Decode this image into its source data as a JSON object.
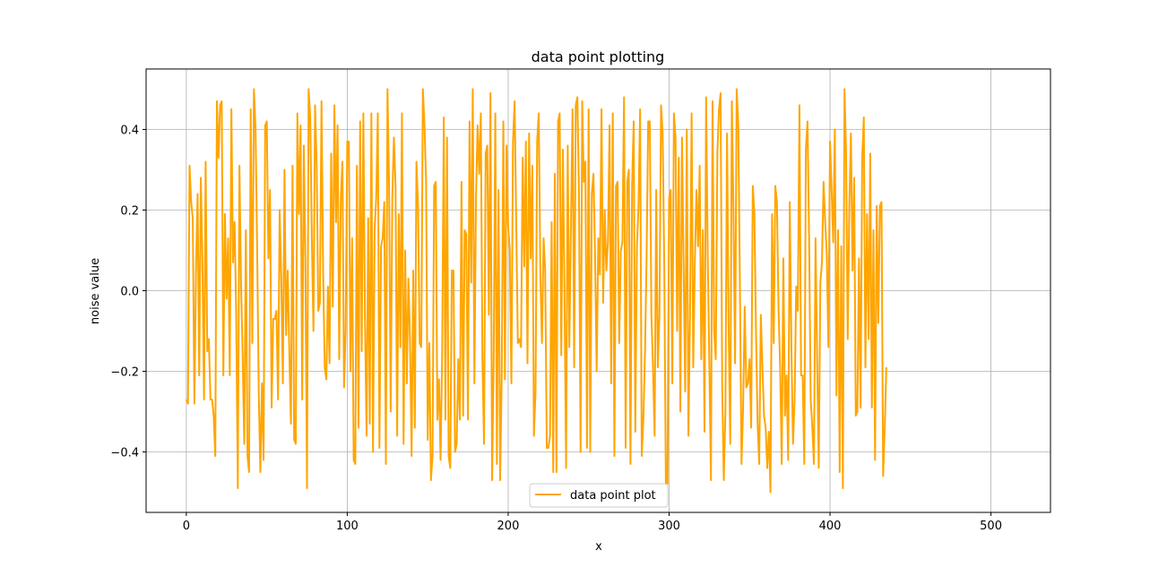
{
  "chart_data": {
    "type": "line",
    "title": "data point plotting",
    "xlabel": "x",
    "ylabel": "noise value",
    "xlim": [
      -25,
      537
    ],
    "ylim": [
      -0.55,
      0.55
    ],
    "xticks": [
      0,
      100,
      200,
      300,
      400,
      500
    ],
    "yticks": [
      -0.4,
      -0.2,
      0.0,
      0.2,
      0.4
    ],
    "xtick_labels": [
      "0",
      "100",
      "200",
      "300",
      "400",
      "500"
    ],
    "ytick_labels": [
      "−0.4",
      "−0.2",
      "0.0",
      "0.2",
      "0.4"
    ],
    "grid": true,
    "legend_position": "lower center",
    "series": [
      {
        "name": "data point plot",
        "color": "#FFA500",
        "x_start": 0,
        "x_step": 1,
        "values": [
          -0.27,
          -0.28,
          0.31,
          0.22,
          0.18,
          -0.28,
          0.05,
          0.24,
          -0.21,
          0.28,
          0.07,
          -0.27,
          0.32,
          -0.15,
          -0.12,
          -0.27,
          -0.27,
          -0.31,
          -0.41,
          0.47,
          0.33,
          0.46,
          0.47,
          -0.21,
          0.19,
          -0.02,
          0.13,
          -0.21,
          0.45,
          0.07,
          0.17,
          -0.06,
          -0.49,
          0.31,
          0.02,
          -0.16,
          -0.38,
          0.15,
          -0.41,
          -0.45,
          0.45,
          -0.13,
          0.5,
          0.4,
          0.11,
          -0.25,
          -0.45,
          -0.23,
          -0.42,
          0.41,
          0.42,
          0.08,
          0.25,
          -0.29,
          -0.07,
          -0.07,
          -0.05,
          -0.27,
          0.2,
          0.03,
          -0.23,
          0.3,
          -0.11,
          0.05,
          -0.15,
          -0.33,
          0.31,
          -0.37,
          -0.38,
          0.44,
          0.19,
          0.41,
          -0.27,
          0.36,
          0.07,
          -0.49,
          0.5,
          0.43,
          0.13,
          -0.1,
          0.46,
          0.31,
          -0.05,
          -0.03,
          0.47,
          0.05,
          -0.19,
          -0.22,
          0.01,
          -0.18,
          0.34,
          -0.04,
          0.46,
          0.17,
          0.41,
          -0.17,
          0.23,
          0.32,
          -0.24,
          -0.1,
          0.37,
          0.37,
          -0.2,
          0.13,
          -0.42,
          -0.43,
          0.31,
          -0.34,
          0.42,
          -0.15,
          0.44,
          -0.06,
          -0.36,
          0.18,
          -0.33,
          0.44,
          -0.4,
          0.15,
          0.23,
          0.44,
          -0.39,
          0.11,
          0.13,
          0.22,
          -0.43,
          0.5,
          0.26,
          -0.3,
          0.23,
          0.38,
          0.26,
          -0.36,
          0.19,
          -0.14,
          0.44,
          -0.38,
          0.1,
          -0.23,
          0.03,
          -0.12,
          -0.41,
          0.05,
          -0.34,
          0.32,
          0.21,
          -0.13,
          -0.14,
          0.5,
          0.41,
          0.27,
          -0.37,
          -0.13,
          -0.47,
          -0.41,
          0.26,
          0.27,
          -0.32,
          -0.22,
          -0.42,
          -0.15,
          0.43,
          -0.32,
          0.38,
          -0.41,
          -0.44,
          0.05,
          0.05,
          -0.4,
          -0.38,
          -0.17,
          -0.32,
          0.27,
          -0.31,
          0.15,
          0.14,
          -0.32,
          0.42,
          0.02,
          0.5,
          -0.23,
          0.23,
          0.41,
          0.29,
          0.44,
          -0.17,
          -0.38,
          0.34,
          0.36,
          -0.06,
          0.49,
          -0.47,
          -0.17,
          0.44,
          -0.43,
          0.25,
          -0.47,
          -0.21,
          0.42,
          -0.22,
          0.36,
          0.16,
          0.1,
          -0.23,
          0.37,
          0.47,
          0.17,
          -0.13,
          -0.12,
          -0.14,
          0.33,
          0.06,
          0.37,
          -0.18,
          0.39,
          0.08,
          0.31,
          -0.36,
          -0.25,
          0.37,
          0.44,
          0.04,
          -0.13,
          0.13,
          0.05,
          -0.39,
          -0.39,
          -0.36,
          0.17,
          -0.45,
          0.29,
          -0.45,
          0.42,
          0.44,
          -0.16,
          0.35,
          -0.01,
          -0.44,
          0.36,
          -0.14,
          0.16,
          0.45,
          -0.19,
          0.46,
          0.48,
          0.24,
          -0.4,
          0.47,
          0.27,
          0.32,
          -0.39,
          0.45,
          -0.4,
          0.24,
          0.29,
          0.09,
          -0.2,
          0.13,
          0.04,
          0.45,
          -0.03,
          0.2,
          0.05,
          0.12,
          0.41,
          -0.23,
          0.44,
          -0.41,
          0.26,
          0.27,
          -0.13,
          0.1,
          0.12,
          0.48,
          -0.39,
          0.27,
          0.3,
          -0.43,
          0.26,
          0.42,
          -0.35,
          0.11,
          0.21,
          0.45,
          -0.41,
          -0.32,
          -0.16,
          0.08,
          0.42,
          0.42,
          -0.06,
          -0.19,
          -0.36,
          0.25,
          -0.19,
          -0.06,
          0.46,
          0.39,
          0.06,
          -0.48,
          -0.48,
          0.23,
          0.25,
          -0.23,
          0.44,
          0.38,
          -0.1,
          0.33,
          -0.3,
          0.38,
          0.07,
          -0.25,
          0.4,
          -0.36,
          -0.06,
          0.44,
          -0.19,
          0.07,
          0.25,
          0.11,
          0.31,
          -0.17,
          0.15,
          -0.35,
          0.48,
          0.09,
          -0.18,
          -0.47,
          0.47,
          -0.1,
          -0.17,
          0.34,
          0.45,
          0.49,
          -0.24,
          -0.47,
          -0.3,
          0.39,
          -0.09,
          -0.38,
          0.47,
          0.2,
          -0.18,
          0.5,
          0.41,
          0.02,
          -0.43,
          -0.29,
          -0.04,
          -0.24,
          -0.23,
          -0.17,
          -0.34,
          0.26,
          0.19,
          -0.1,
          -0.33,
          -0.43,
          -0.06,
          -0.19,
          -0.31,
          -0.34,
          -0.44,
          -0.35,
          -0.5,
          0.19,
          -0.13,
          0.26,
          0.22,
          -0.04,
          -0.19,
          -0.43,
          0.08,
          -0.31,
          -0.21,
          -0.42,
          0.22,
          -0.14,
          -0.38,
          -0.27,
          0.01,
          -0.05,
          0.46,
          -0.21,
          -0.21,
          -0.43,
          0.35,
          0.42,
          0.13,
          -0.27,
          -0.34,
          -0.43,
          0.13,
          -0.17,
          -0.44,
          0.02,
          0.07,
          0.27,
          0.17,
          0.09,
          -0.14,
          0.37,
          0.25,
          0.12,
          0.4,
          -0.26,
          0.15,
          -0.45,
          0.11,
          -0.49,
          0.5,
          0.34,
          -0.12,
          0.21,
          0.39,
          0.05,
          0.28,
          -0.31,
          -0.3,
          0.08,
          -0.29,
          0.33,
          0.43,
          -0.19,
          0.19,
          -0.12,
          0.34,
          -0.29,
          0.15,
          -0.42,
          0.21,
          -0.08,
          0.21,
          0.22,
          -0.46,
          -0.34,
          -0.19
        ]
      }
    ]
  }
}
